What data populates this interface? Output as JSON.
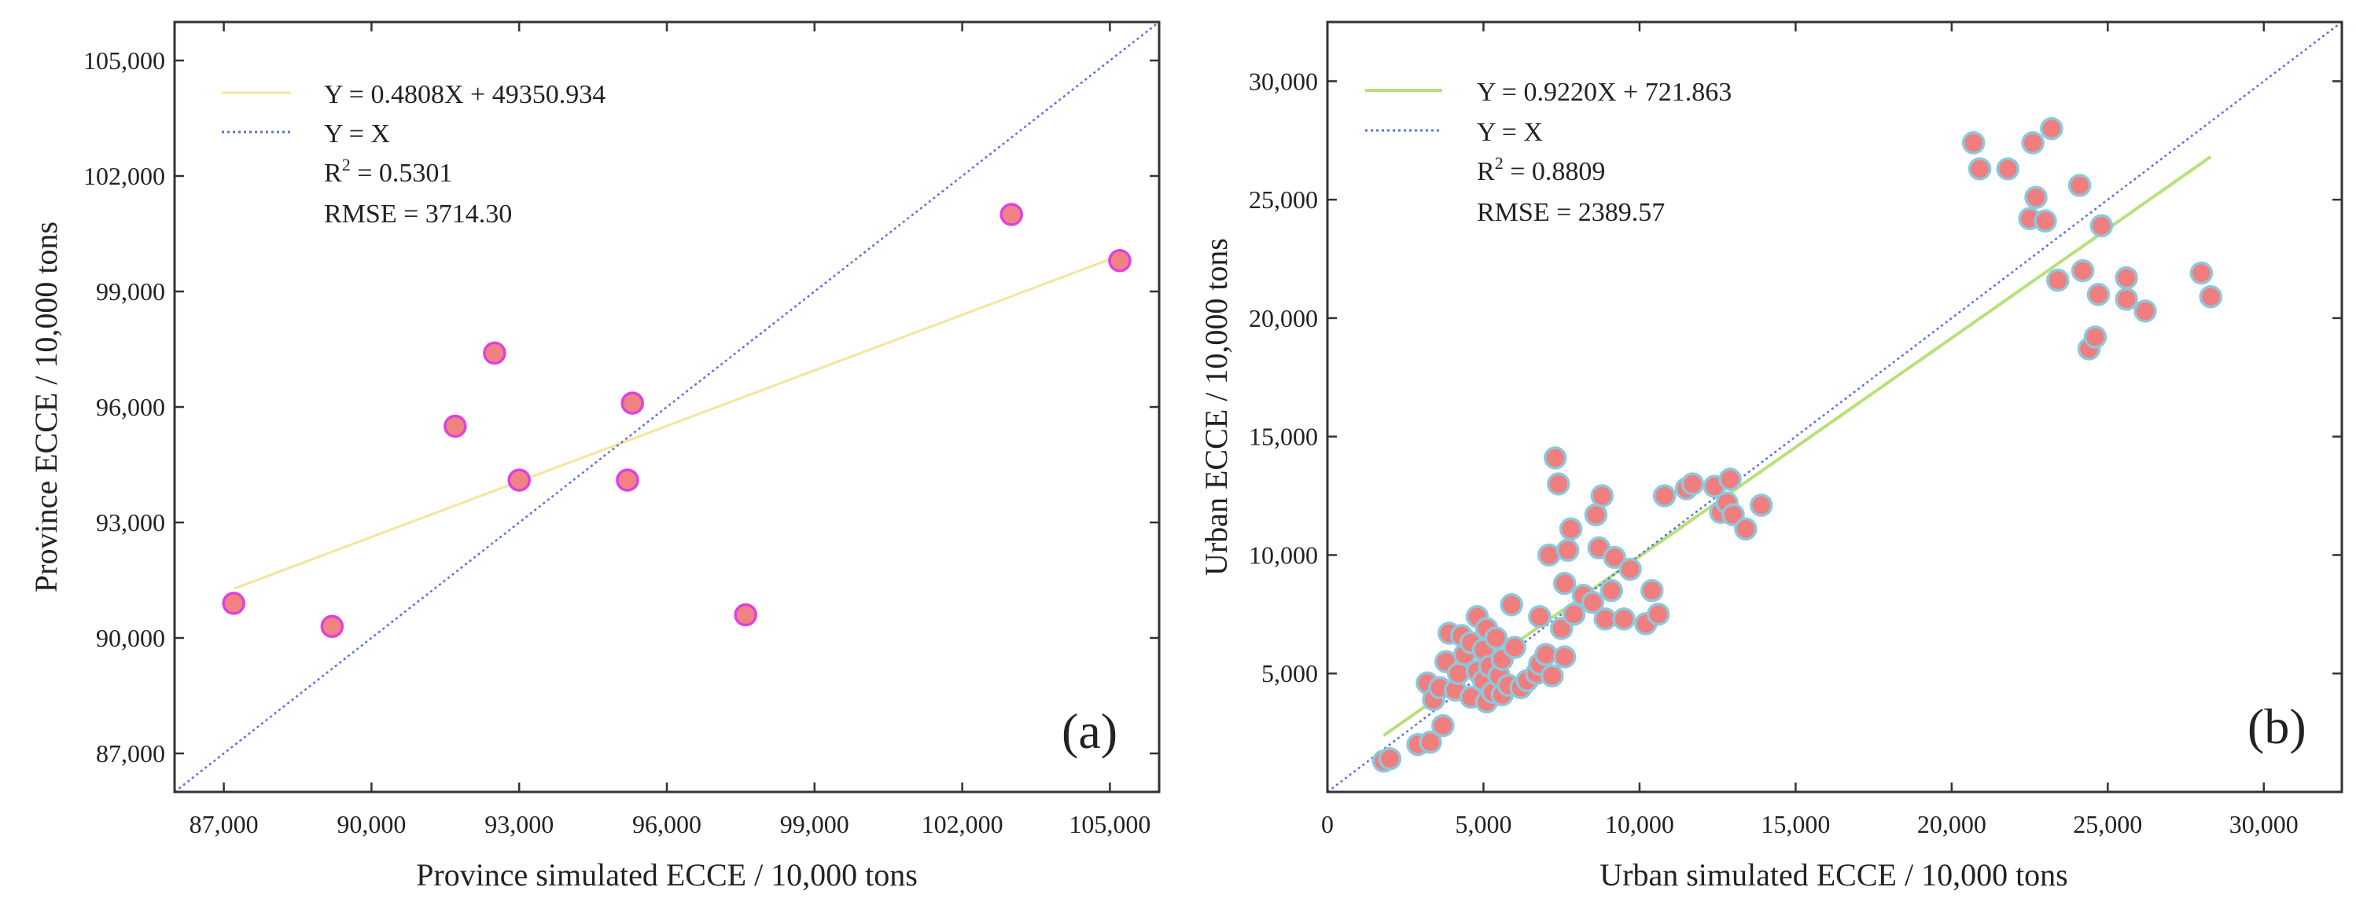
{
  "chart_data": [
    {
      "panel_label": "(a)",
      "type": "scatter",
      "xlabel": "Province simulated ECCE / 10,000 tons",
      "ylabel": "Province  ECCE / 10,000 tons",
      "xlim": [
        86000,
        106000
      ],
      "ylim": [
        86000,
        106000
      ],
      "xticks": [
        87000,
        90000,
        93000,
        96000,
        99000,
        102000,
        105000
      ],
      "yticks": [
        87000,
        90000,
        93000,
        96000,
        99000,
        102000,
        105000
      ],
      "xtick_labels": [
        "87,000",
        "90,000",
        "93,000",
        "96,000",
        "99,000",
        "102,000",
        "105,000"
      ],
      "ytick_labels": [
        "87,000",
        "90,000",
        "93,000",
        "96,000",
        "99,000",
        "102,000",
        "105,000"
      ],
      "points": [
        [
          87200,
          90900
        ],
        [
          89200,
          90300
        ],
        [
          91700,
          95500
        ],
        [
          92500,
          97400
        ],
        [
          93000,
          94100
        ],
        [
          95200,
          94100
        ],
        [
          95300,
          96100
        ],
        [
          97600,
          90600
        ],
        [
          103000,
          101000
        ],
        [
          105200,
          99800
        ]
      ],
      "fit": {
        "slope": 0.4808,
        "intercept": 49350.934,
        "x_range": [
          87200,
          105200
        ]
      },
      "legend": {
        "fit_label": "Y = 0.4808X + 49350.934",
        "identity_label": "Y = X",
        "r2_prefix": "R",
        "r2_exp": "2",
        "r2_value": " = 0.5301",
        "rmse": "RMSE = 3714.30"
      },
      "colors": {
        "fit": "#f2e69b",
        "identity": "#5a6fe0",
        "marker_fill": "#f08282",
        "marker_edge": "#e040e0"
      }
    },
    {
      "panel_label": "(b)",
      "type": "scatter",
      "xlabel": "Urban simulated ECCE / 10,000 tons",
      "ylabel": "Urban ECCE / 10,000 tons",
      "xlim": [
        0,
        32500
      ],
      "ylim": [
        0,
        32500
      ],
      "xticks": [
        0,
        5000,
        10000,
        15000,
        20000,
        25000,
        30000
      ],
      "yticks": [
        5000,
        10000,
        15000,
        20000,
        25000,
        30000
      ],
      "xtick_labels": [
        "0",
        "5,000",
        "10,000",
        "15,000",
        "20,000",
        "25,000",
        "30,000"
      ],
      "ytick_labels": [
        "5,000",
        "10,000",
        "15,000",
        "20,000",
        "25,000",
        "30,000"
      ],
      "points": [
        [
          1800,
          1300
        ],
        [
          2000,
          1400
        ],
        [
          2900,
          2000
        ],
        [
          3300,
          2100
        ],
        [
          3700,
          2800
        ],
        [
          3200,
          4600
        ],
        [
          3400,
          3900
        ],
        [
          3600,
          4400
        ],
        [
          3800,
          5500
        ],
        [
          3900,
          6700
        ],
        [
          4100,
          4300
        ],
        [
          4200,
          5000
        ],
        [
          4300,
          6600
        ],
        [
          4400,
          5800
        ],
        [
          4600,
          4000
        ],
        [
          4600,
          6300
        ],
        [
          4800,
          5100
        ],
        [
          4800,
          7400
        ],
        [
          5000,
          4700
        ],
        [
          5000,
          6000
        ],
        [
          5100,
          3800
        ],
        [
          5100,
          6900
        ],
        [
          5200,
          5300
        ],
        [
          5300,
          4200
        ],
        [
          5400,
          6500
        ],
        [
          5500,
          4900
        ],
        [
          5600,
          4100
        ],
        [
          5600,
          5600
        ],
        [
          5800,
          4500
        ],
        [
          5900,
          7900
        ],
        [
          6000,
          6100
        ],
        [
          6200,
          4400
        ],
        [
          6400,
          4700
        ],
        [
          6700,
          5000
        ],
        [
          6800,
          5400
        ],
        [
          6800,
          7400
        ],
        [
          7000,
          5800
        ],
        [
          7100,
          10000
        ],
        [
          7200,
          4900
        ],
        [
          7300,
          14100
        ],
        [
          7400,
          13000
        ],
        [
          7500,
          6900
        ],
        [
          7600,
          8800
        ],
        [
          7600,
          5700
        ],
        [
          7700,
          10200
        ],
        [
          7800,
          11100
        ],
        [
          7900,
          7500
        ],
        [
          8200,
          8300
        ],
        [
          8500,
          8000
        ],
        [
          8600,
          11700
        ],
        [
          8700,
          10300
        ],
        [
          8800,
          12500
        ],
        [
          8900,
          7300
        ],
        [
          9100,
          8500
        ],
        [
          9200,
          9900
        ],
        [
          9500,
          7300
        ],
        [
          9700,
          9400
        ],
        [
          10200,
          7100
        ],
        [
          10400,
          8500
        ],
        [
          10600,
          7500
        ],
        [
          10800,
          12500
        ],
        [
          11500,
          12800
        ],
        [
          11700,
          13000
        ],
        [
          12400,
          12900
        ],
        [
          12600,
          11800
        ],
        [
          12800,
          12200
        ],
        [
          12900,
          13200
        ],
        [
          13000,
          11700
        ],
        [
          13400,
          11100
        ],
        [
          13900,
          12100
        ],
        [
          20700,
          27400
        ],
        [
          20900,
          26300
        ],
        [
          21800,
          26300
        ],
        [
          22500,
          24200
        ],
        [
          22600,
          27400
        ],
        [
          22700,
          25100
        ],
        [
          23000,
          24100
        ],
        [
          23200,
          28000
        ],
        [
          23400,
          21600
        ],
        [
          24100,
          25600
        ],
        [
          24200,
          22000
        ],
        [
          24400,
          18700
        ],
        [
          24600,
          19200
        ],
        [
          24700,
          21000
        ],
        [
          24800,
          23900
        ],
        [
          25600,
          21700
        ],
        [
          25600,
          20800
        ],
        [
          26200,
          20300
        ],
        [
          28000,
          21900
        ],
        [
          28300,
          20900
        ]
      ],
      "fit": {
        "slope": 0.922,
        "intercept": 721.863,
        "x_range": [
          1800,
          28300
        ]
      },
      "legend": {
        "fit_label": "Y = 0.9220X + 721.863",
        "identity_label": "Y = X",
        "r2_prefix": "R",
        "r2_exp": "2",
        "r2_value": " = 0.8809",
        "rmse": "RMSE = 2389.57"
      },
      "colors": {
        "fit": "#b8e07a",
        "identity": "#5a6fe0",
        "marker_fill": "#f07e7e",
        "marker_edge": "#8cc8dc"
      }
    }
  ]
}
